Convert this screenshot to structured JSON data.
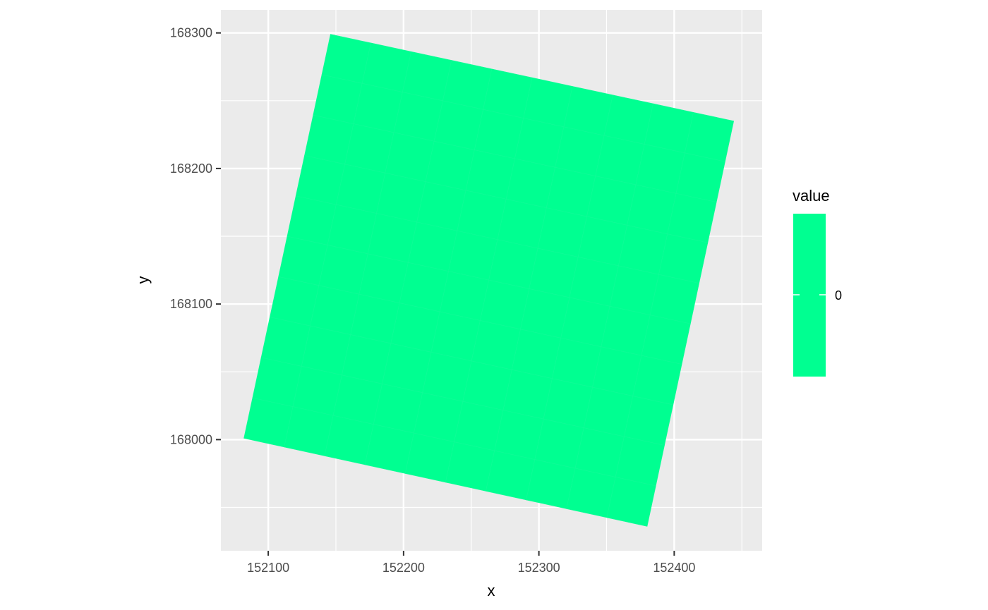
{
  "chart_data": {
    "type": "heatmap",
    "title": "",
    "xlabel": "x",
    "ylabel": "y",
    "xlim": [
      152065,
      152465
    ],
    "ylim": [
      167918,
      168317
    ],
    "x_ticks": [
      152100,
      152200,
      152300,
      152400
    ],
    "x_tick_labels": [
      "152100",
      "152200",
      "152300",
      "152400"
    ],
    "y_ticks": [
      168000,
      168100,
      168200,
      168300
    ],
    "y_tick_labels": [
      "168000",
      "168100",
      "168200",
      "168300"
    ],
    "grid": true,
    "raster": {
      "corners": [
        [
          152082,
          168001
        ],
        [
          152146,
          168299
        ],
        [
          152444,
          168235
        ],
        [
          152380,
          167936
        ]
      ],
      "rows": 10,
      "cols": 10,
      "value": 0,
      "fill_color": "#00FF91"
    },
    "legend": {
      "title": "value",
      "position": "right",
      "labels": [
        "0"
      ],
      "color": "#00FF91"
    },
    "colors": {
      "panel_bg": "#EBEBEB",
      "grid_major": "#FFFFFF",
      "axis_text": "#4D4D4D",
      "axis_title": "#000000"
    }
  }
}
